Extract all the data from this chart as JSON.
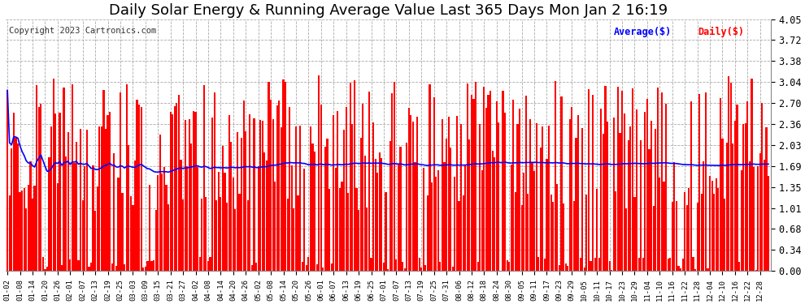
{
  "title": "Daily Solar Energy & Running Average Value Last 365 Days Mon Jan 2 16:19",
  "copyright": "Copyright 2023 Cartronics.com",
  "legend_avg": "Average($)",
  "legend_daily": "Daily($)",
  "ylabel_ticks": [
    0.0,
    0.34,
    0.68,
    1.01,
    1.35,
    1.69,
    2.03,
    2.36,
    2.7,
    3.04,
    3.38,
    3.72,
    4.05
  ],
  "ymax": 4.05,
  "bar_color": "#ff0000",
  "avg_color": "#0000ff",
  "bg_color": "#ffffff",
  "grid_color": "#aaaaaa",
  "title_color": "#000000",
  "title_fontsize": 13,
  "copyright_fontsize": 7.5,
  "avg_linewidth": 1.2,
  "n_days": 365,
  "x_tick_labels": [
    "01-02",
    "01-08",
    "01-14",
    "01-20",
    "01-26",
    "02-01",
    "02-07",
    "02-13",
    "02-19",
    "02-25",
    "03-03",
    "03-09",
    "03-15",
    "03-21",
    "03-27",
    "04-02",
    "04-08",
    "04-14",
    "04-20",
    "04-26",
    "05-02",
    "05-08",
    "05-14",
    "05-20",
    "05-26",
    "06-01",
    "06-07",
    "06-13",
    "06-19",
    "06-25",
    "07-01",
    "07-07",
    "07-13",
    "07-19",
    "07-25",
    "07-31",
    "08-06",
    "08-12",
    "08-18",
    "08-24",
    "08-30",
    "09-05",
    "09-11",
    "09-17",
    "09-23",
    "09-29",
    "10-05",
    "10-11",
    "10-17",
    "10-23",
    "10-29",
    "11-04",
    "11-10",
    "11-16",
    "11-22",
    "11-28",
    "12-04",
    "12-10",
    "12-16",
    "12-22",
    "12-28"
  ]
}
